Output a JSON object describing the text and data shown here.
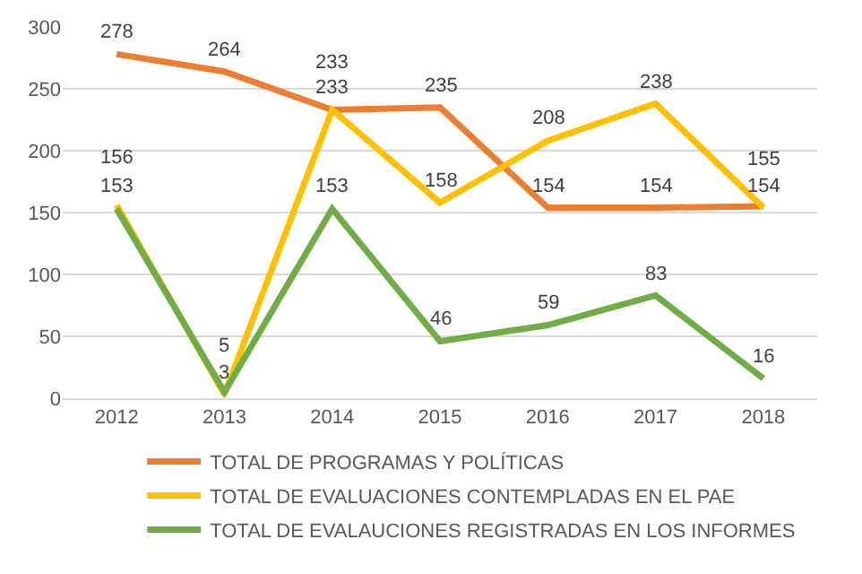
{
  "chart_data": {
    "type": "line",
    "categories": [
      "2012",
      "2013",
      "2014",
      "2015",
      "2016",
      "2017",
      "2018"
    ],
    "series": [
      {
        "name": "TOTAL DE PROGRAMAS Y POLÍTICAS",
        "color": "#ed7d31",
        "values": [
          278,
          264,
          233,
          235,
          154,
          154,
          155
        ]
      },
      {
        "name": "TOTAL DE EVALUACIONES CONTEMPLADAS EN EL PAE",
        "color": "#ffc000",
        "values": [
          156,
          3,
          233,
          158,
          208,
          238,
          154
        ]
      },
      {
        "name": "TOTAL DE EVALAUCIONES REGISTRADAS EN LOS INFORMES",
        "color": "#70ad47",
        "values": [
          153,
          5,
          153,
          46,
          59,
          83,
          16
        ]
      }
    ],
    "ylim": [
      0,
      300
    ],
    "yticks": [
      0,
      50,
      100,
      150,
      200,
      250,
      300
    ],
    "grid": "y",
    "legend": "bottom",
    "data_labels": true,
    "marker": "none",
    "line_style": "solid"
  }
}
